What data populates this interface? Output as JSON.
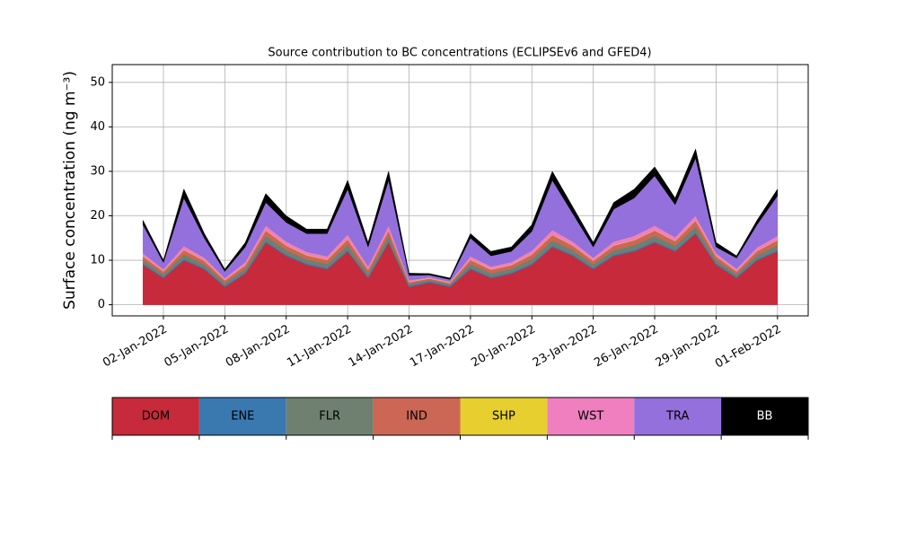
{
  "chart_data": {
    "type": "stacked_area",
    "title": "Source contribution to BC concentrations (ECLIPSEv6 and GFED4)",
    "y_label": "Surface concentration (ng m⁻³)",
    "x": [
      "2022-01-01",
      "2022-01-02",
      "2022-01-03",
      "2022-01-04",
      "2022-01-05",
      "2022-01-06",
      "2022-01-07",
      "2022-01-08",
      "2022-01-09",
      "2022-01-10",
      "2022-01-11",
      "2022-01-12",
      "2022-01-13",
      "2022-01-14",
      "2022-01-15",
      "2022-01-16",
      "2022-01-17",
      "2022-01-18",
      "2022-01-19",
      "2022-01-20",
      "2022-01-21",
      "2022-01-22",
      "2022-01-23",
      "2022-01-24",
      "2022-01-25",
      "2022-01-26",
      "2022-01-27",
      "2022-01-28",
      "2022-01-29",
      "2022-01-30",
      "2022-01-31",
      "2022-02-01"
    ],
    "xlim": [
      "2021-12-30T12:00",
      "2022-02-02T12:00"
    ],
    "xticks": [
      {
        "value": "2022-01-02",
        "label": "02-Jan-2022"
      },
      {
        "value": "2022-01-05",
        "label": "05-Jan-2022"
      },
      {
        "value": "2022-01-08",
        "label": "08-Jan-2022"
      },
      {
        "value": "2022-01-11",
        "label": "11-Jan-2022"
      },
      {
        "value": "2022-01-14",
        "label": "14-Jan-2022"
      },
      {
        "value": "2022-01-17",
        "label": "17-Jan-2022"
      },
      {
        "value": "2022-01-20",
        "label": "20-Jan-2022"
      },
      {
        "value": "2022-01-23",
        "label": "23-Jan-2022"
      },
      {
        "value": "2022-01-26",
        "label": "26-Jan-2022"
      },
      {
        "value": "2022-01-29",
        "label": "29-Jan-2022"
      },
      {
        "value": "2022-02-01",
        "label": "01-Feb-2022"
      }
    ],
    "ylim": [
      -2.5,
      54
    ],
    "yticks": [
      0,
      10,
      20,
      30,
      40,
      50
    ],
    "grid": true,
    "legend": "bottom",
    "series": [
      {
        "name": "DOM",
        "color": "#c72a3a",
        "values": [
          9,
          6,
          10,
          8,
          4,
          7,
          14,
          11,
          9,
          8,
          12,
          6,
          14,
          4,
          5,
          4,
          8,
          6,
          7,
          9,
          13,
          11,
          8,
          11,
          12,
          14,
          12,
          16,
          9,
          6,
          10,
          12
        ]
      },
      {
        "name": "ENE",
        "color": "#3a78b0",
        "values": [
          0.3,
          0.3,
          0.3,
          0.3,
          0.3,
          0.3,
          0.3,
          0.3,
          0.3,
          0.3,
          0.3,
          0.3,
          0.3,
          0.3,
          0.3,
          0.3,
          0.3,
          0.3,
          0.3,
          0.3,
          0.3,
          0.3,
          0.3,
          0.3,
          0.3,
          0.3,
          0.3,
          0.3,
          0.3,
          0.3,
          0.3,
          0.3
        ]
      },
      {
        "name": "FLR",
        "color": "#6f8070",
        "values": [
          0.8,
          0.6,
          1,
          0.8,
          0.6,
          0.8,
          1.2,
          1,
          0.9,
          0.9,
          1.2,
          0.8,
          1.2,
          0.4,
          0.3,
          0.3,
          0.9,
          0.8,
          0.8,
          1,
          1.2,
          1,
          0.8,
          1,
          1.1,
          1.2,
          1,
          1.3,
          0.8,
          0.6,
          0.9,
          1.1
        ]
      },
      {
        "name": "IND",
        "color": "#cc6655",
        "values": [
          0.8,
          0.6,
          1,
          0.8,
          0.6,
          0.8,
          1.2,
          1,
          0.9,
          0.9,
          1.2,
          0.8,
          1.2,
          0.4,
          0.3,
          0.3,
          0.9,
          0.8,
          0.8,
          1,
          1.2,
          1,
          0.8,
          1,
          1.1,
          1.2,
          1,
          1.3,
          0.8,
          0.6,
          0.9,
          1.1
        ]
      },
      {
        "name": "SHP",
        "color": "#e6cf2e",
        "values": [
          0.1,
          0.1,
          0.1,
          0.1,
          0.1,
          0.1,
          0.1,
          0.1,
          0.1,
          0.1,
          0.1,
          0.1,
          0.1,
          0.1,
          0.1,
          0.1,
          0.1,
          0.1,
          0.1,
          0.1,
          0.1,
          0.1,
          0.1,
          0.1,
          0.1,
          0.1,
          0.1,
          0.1,
          0.1,
          0.1,
          0.1,
          0.1
        ]
      },
      {
        "name": "WST",
        "color": "#f07fbf",
        "values": [
          0.6,
          0.4,
          0.8,
          0.6,
          0.4,
          0.6,
          1,
          0.8,
          0.7,
          0.7,
          1,
          0.6,
          1,
          0.3,
          0.2,
          0.2,
          0.7,
          0.6,
          0.6,
          0.8,
          1,
          0.8,
          0.6,
          0.8,
          0.9,
          1,
          0.8,
          1,
          0.6,
          0.5,
          0.7,
          0.9
        ]
      },
      {
        "name": "TRA",
        "color": "#9370db",
        "values": [
          6.4,
          1.5,
          10.8,
          4.4,
          1.5,
          3.4,
          5.2,
          4.3,
          4.1,
          5.1,
          10.2,
          4.4,
          10.2,
          1.1,
          0.5,
          0.5,
          4.1,
          2.4,
          2.4,
          4.3,
          11.2,
          6.3,
          2.4,
          7.3,
          8.5,
          11.2,
          7.3,
          13,
          1.4,
          2.4,
          5.1,
          9
        ]
      },
      {
        "name": "BB",
        "color": "#000000",
        "values": [
          1,
          0.5,
          2,
          1,
          0.5,
          1,
          2,
          1.5,
          1,
          1,
          2,
          1,
          2,
          0.5,
          0.3,
          0.3,
          1,
          1,
          1,
          1.5,
          2,
          1.5,
          1,
          1.5,
          2,
          2,
          1.5,
          2,
          1,
          0.5,
          1,
          1.5
        ]
      }
    ]
  }
}
